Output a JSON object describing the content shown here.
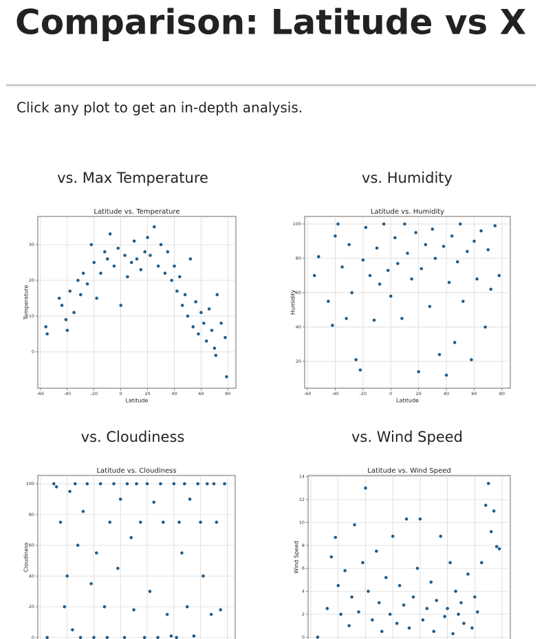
{
  "header": {
    "title": "Comparison: Latitude vs X",
    "intro": "Click any plot to get an in-depth analysis."
  },
  "sections": [
    {
      "heading": "vs. Max Temperature"
    },
    {
      "heading": "vs. Humidity"
    },
    {
      "heading": "vs. Cloudiness"
    },
    {
      "heading": "vs. Wind Speed"
    }
  ],
  "chart_data": [
    {
      "type": "scatter",
      "title": "Latitude vs. Temperature",
      "x_label": "Latitude",
      "y_label": "Temperature",
      "color": "#215d8a",
      "grid": true,
      "xlim": [
        -62,
        86
      ],
      "ylim": [
        -10.2,
        37.9
      ],
      "xticks": [
        -60,
        -40,
        -20,
        0,
        20,
        40,
        60,
        80
      ],
      "yticks": [
        0,
        10,
        20,
        30
      ],
      "x": [
        -56,
        -55,
        -46,
        -44,
        -41,
        -40,
        -38,
        -35,
        -32,
        -30,
        -28,
        -25,
        -22,
        -20,
        -18,
        -15,
        -12,
        -10,
        -8,
        -5,
        -2,
        0,
        3,
        5,
        8,
        10,
        12,
        15,
        18,
        20,
        22,
        25,
        28,
        30,
        33,
        35,
        38,
        40,
        42,
        44,
        46,
        48,
        50,
        52,
        54,
        56,
        58,
        60,
        62,
        64,
        66,
        68,
        70,
        71,
        72,
        75,
        78,
        79
      ],
      "values": [
        7,
        5,
        15,
        13,
        9,
        6,
        17,
        11,
        20,
        16,
        22,
        19,
        30,
        25,
        15,
        22,
        28,
        26,
        33,
        24,
        29,
        13,
        27,
        21,
        25,
        31,
        26,
        23,
        28,
        32,
        27,
        35,
        24,
        30,
        22,
        28,
        20,
        24,
        17,
        21,
        13,
        16,
        10,
        26,
        7,
        14,
        5,
        11,
        8,
        3,
        12,
        6,
        1,
        -1,
        16,
        8,
        4,
        -7
      ]
    },
    {
      "type": "scatter",
      "title": "Latitude vs. Humidity",
      "x_label": "Latitude",
      "y_label": "Humidity",
      "color": "#215d8a",
      "grid": true,
      "xlim": [
        -62,
        86
      ],
      "ylim": [
        4.4,
        104.4
      ],
      "xticks": [
        -60,
        -40,
        -20,
        0,
        20,
        40,
        60,
        80
      ],
      "yticks": [
        20,
        40,
        60,
        80,
        100
      ],
      "x": [
        -55,
        -52,
        -45,
        -42,
        -40,
        -38,
        -35,
        -32,
        -30,
        -28,
        -25,
        -22,
        -20,
        -18,
        -15,
        -12,
        -10,
        -8,
        -5,
        -2,
        0,
        3,
        5,
        8,
        10,
        12,
        15,
        18,
        20,
        22,
        25,
        28,
        30,
        32,
        35,
        38,
        40,
        42,
        44,
        46,
        48,
        50,
        52,
        55,
        58,
        60,
        62,
        65,
        68,
        70,
        72,
        75,
        78
      ],
      "values": [
        70,
        81,
        55,
        41,
        93,
        100,
        75,
        45,
        88,
        60,
        21,
        15,
        79,
        98,
        70,
        44,
        86,
        65,
        100,
        73,
        58,
        92,
        77,
        45,
        100,
        83,
        68,
        95,
        14,
        74,
        88,
        52,
        97,
        80,
        24,
        87,
        12,
        66,
        93,
        31,
        78,
        100,
        55,
        84,
        21,
        90,
        68,
        96,
        40,
        85,
        62,
        99,
        70
      ]
    },
    {
      "type": "scatter",
      "title": "Latitude vs. Cloudiness",
      "y_label": "Cloudiness",
      "color": "#215d8a",
      "grid": true,
      "xlim": [
        -62,
        86
      ],
      "ylim": [
        -5,
        105.4
      ],
      "xticks": [
        -60,
        -40,
        -20,
        0,
        20,
        40,
        60,
        80
      ],
      "yticks": [
        0,
        20,
        40,
        60,
        80,
        100
      ],
      "x": [
        -55,
        -50,
        -48,
        -45,
        -42,
        -40,
        -38,
        -36,
        -34,
        -32,
        -30,
        -28,
        -25,
        -22,
        -20,
        -18,
        -15,
        -12,
        -10,
        -8,
        -5,
        -2,
        0,
        3,
        5,
        8,
        10,
        12,
        15,
        18,
        20,
        22,
        25,
        28,
        30,
        32,
        35,
        38,
        40,
        42,
        44,
        46,
        48,
        50,
        52,
        55,
        58,
        60,
        62,
        65,
        68,
        70,
        72,
        75,
        78
      ],
      "values": [
        0,
        100,
        98,
        75,
        20,
        40,
        95,
        5,
        100,
        60,
        0,
        82,
        100,
        35,
        0,
        55,
        100,
        20,
        0,
        75,
        100,
        45,
        90,
        0,
        100,
        65,
        18,
        100,
        75,
        0,
        100,
        30,
        88,
        0,
        100,
        75,
        15,
        1,
        100,
        0,
        75,
        55,
        100,
        20,
        90,
        1,
        100,
        75,
        40,
        100,
        15,
        100,
        75,
        18,
        100
      ]
    },
    {
      "type": "scatter",
      "title": "Latitude vs. Wind Speed",
      "y_label": "Wind Speed",
      "color": "#215d8a",
      "grid": true,
      "xlim": [
        -62,
        86
      ],
      "ylim": [
        -0.7,
        14.1
      ],
      "xticks": [
        -60,
        -40,
        -20,
        0,
        20,
        40,
        60,
        80
      ],
      "yticks": [
        0,
        2,
        4,
        6,
        8,
        10,
        12,
        14
      ],
      "x": [
        -55,
        -48,
        -45,
        -42,
        -40,
        -38,
        -35,
        -32,
        -30,
        -28,
        -25,
        -22,
        -20,
        -18,
        -15,
        -12,
        -10,
        -8,
        -5,
        -2,
        0,
        3,
        5,
        8,
        10,
        12,
        15,
        18,
        20,
        22,
        25,
        28,
        30,
        32,
        35,
        38,
        40,
        42,
        44,
        46,
        48,
        50,
        52,
        55,
        58,
        60,
        62,
        65,
        68,
        70,
        72,
        74,
        76,
        78
      ],
      "values": [
        0,
        2.5,
        7,
        8.7,
        4.5,
        2,
        5.8,
        1,
        3.5,
        9.8,
        2.2,
        6.5,
        13,
        4,
        1.5,
        7.5,
        3,
        0.5,
        5.2,
        2,
        8.8,
        1.2,
        4.5,
        2.8,
        10.3,
        0.8,
        3.5,
        6,
        10.3,
        1.5,
        2.5,
        4.8,
        0.5,
        3.2,
        8.8,
        1.8,
        2.5,
        6.5,
        0.3,
        4,
        2,
        3,
        1.2,
        5.5,
        0.8,
        3.5,
        2.2,
        6.5,
        11.5,
        13.4,
        9.2,
        11,
        7.9,
        7.7
      ]
    }
  ]
}
